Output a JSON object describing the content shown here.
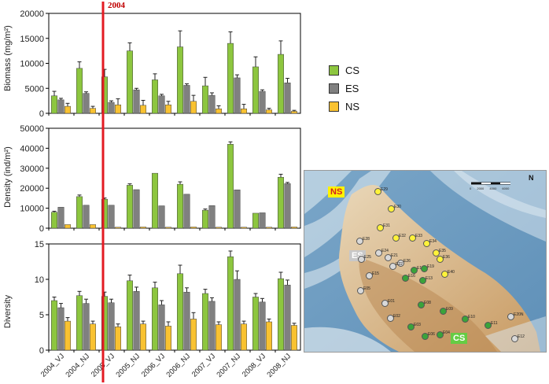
{
  "marker_label": "2004",
  "legend": [
    {
      "label": "CS",
      "color": "#8dc63f"
    },
    {
      "label": "ES",
      "color": "#808080"
    },
    {
      "label": "NS",
      "color": "#f9c231"
    }
  ],
  "colors": {
    "cs": "#8dc63f",
    "es": "#808080",
    "ns": "#f9c231",
    "marker": "#e31b23"
  },
  "map": {
    "zones": {
      "ns": "NS",
      "es": "ES",
      "cs": "CS"
    },
    "north_symbol": "N",
    "scale": [
      "0",
      "2000",
      "4000",
      "6000"
    ],
    "stations": [
      {
        "id": "E29",
        "zone": "ns"
      },
      {
        "id": "E30",
        "zone": "ns"
      },
      {
        "id": "E31",
        "zone": "ns"
      },
      {
        "id": "E32",
        "zone": "ns"
      },
      {
        "id": "E33",
        "zone": "ns"
      },
      {
        "id": "E34",
        "zone": "ns"
      },
      {
        "id": "E28",
        "zone": "es"
      },
      {
        "id": "E24",
        "zone": "es"
      },
      {
        "id": "E21",
        "zone": "es"
      },
      {
        "id": "E25",
        "zone": "es"
      },
      {
        "id": "E35",
        "zone": "ns"
      },
      {
        "id": "E36",
        "zone": "ns"
      },
      {
        "id": "E26",
        "zone": "es"
      },
      {
        "id": "E22",
        "zone": "es"
      },
      {
        "id": "E18",
        "zone": "cs"
      },
      {
        "id": "E19",
        "zone": "cs"
      },
      {
        "id": "E40",
        "zone": "ns"
      },
      {
        "id": "E15",
        "zone": "es"
      },
      {
        "id": "E16",
        "zone": "cs"
      },
      {
        "id": "E13",
        "zone": "cs"
      },
      {
        "id": "E05",
        "zone": "es"
      },
      {
        "id": "E01",
        "zone": "es"
      },
      {
        "id": "E08",
        "zone": "cs"
      },
      {
        "id": "E09",
        "zone": "cs"
      },
      {
        "id": "E10",
        "zone": "cs"
      },
      {
        "id": "E11",
        "zone": "cs"
      },
      {
        "id": "E02",
        "zone": "es"
      },
      {
        "id": "E03",
        "zone": "cs"
      },
      {
        "id": "E04",
        "zone": "cs"
      },
      {
        "id": "E06",
        "zone": "cs"
      },
      {
        "id": "E12",
        "zone": "es"
      },
      {
        "id": "E20N",
        "zone": "es"
      }
    ]
  },
  "chart_data": [
    {
      "type": "bar",
      "ylabel": "Biomass (mg/m²)",
      "ylim": [
        0,
        20000
      ],
      "yticks": [
        "0",
        "5000",
        "10000",
        "15000",
        "20000"
      ],
      "categories": [
        "2004_VJ",
        "2004_NJ",
        "2005_VJ",
        "2005_NJ",
        "2006_VJ",
        "2006_NJ",
        "2007_VJ",
        "2007_NJ",
        "2008_VJ",
        "2008_NJ"
      ],
      "series": [
        {
          "name": "CS",
          "values": [
            3500,
            9000,
            7300,
            12500,
            6700,
            13300,
            5500,
            14000,
            9300,
            11800
          ],
          "errors": [
            900,
            1300,
            1500,
            1600,
            1200,
            3200,
            1700,
            2300,
            2000,
            2700
          ]
        },
        {
          "name": "ES",
          "values": [
            2700,
            4000,
            2200,
            4700,
            3500,
            5600,
            3600,
            7100,
            4400,
            6100
          ],
          "errors": [
            300,
            300,
            300,
            300,
            300,
            300,
            500,
            600,
            300,
            900
          ]
        },
        {
          "name": "NS",
          "values": [
            1400,
            1000,
            1700,
            1600,
            1700,
            2400,
            900,
            900,
            700,
            400
          ],
          "errors": [
            600,
            400,
            1200,
            1000,
            700,
            1200,
            600,
            900,
            300,
            200
          ]
        }
      ]
    },
    {
      "type": "bar",
      "ylabel": "Density (ind/m²)",
      "ylim": [
        0,
        50000
      ],
      "yticks": [
        "0",
        "10000",
        "20000",
        "30000",
        "40000",
        "50000"
      ],
      "categories": [
        "2004_VJ",
        "2004_NJ",
        "2005_VJ",
        "2005_NJ",
        "2006_VJ",
        "2006_NJ",
        "2007_VJ",
        "2007_NJ",
        "2008_VJ",
        "2008_NJ"
      ],
      "series": [
        {
          "name": "CS",
          "values": [
            8000,
            15800,
            14500,
            21500,
            27500,
            22000,
            9000,
            42000,
            7500,
            25500
          ],
          "errors": [
            500,
            800,
            600,
            700,
            0,
            1200,
            600,
            1200,
            0,
            1500
          ]
        },
        {
          "name": "ES",
          "values": [
            10500,
            11500,
            11500,
            19300,
            11200,
            17000,
            11300,
            19200,
            7700,
            22300
          ],
          "errors": [
            0,
            0,
            0,
            0,
            0,
            0,
            0,
            0,
            0,
            600
          ]
        },
        {
          "name": "NS",
          "values": [
            1800,
            1800,
            500,
            600,
            500,
            600,
            500,
            500,
            500,
            600
          ],
          "errors": [
            0,
            0,
            0,
            0,
            0,
            0,
            0,
            0,
            0,
            0
          ]
        }
      ]
    },
    {
      "type": "bar",
      "ylabel": "Diversity",
      "ylim": [
        0,
        15
      ],
      "yticks": [
        "0",
        "5",
        "10",
        "15"
      ],
      "xticklabels": [
        "2004_VJ",
        "2004_NJ",
        "2005_VJ",
        "2005_NJ",
        "2006_VJ",
        "2006_NJ",
        "2007_VJ",
        "2007_NJ",
        "2008_VJ",
        "2008_NJ"
      ],
      "categories": [
        "2004_VJ",
        "2004_NJ",
        "2005_VJ",
        "2005_NJ",
        "2006_VJ",
        "2006_NJ",
        "2007_VJ",
        "2007_NJ",
        "2008_VJ",
        "2008_NJ"
      ],
      "series": [
        {
          "name": "CS",
          "values": [
            7.0,
            7.7,
            7.6,
            9.8,
            8.8,
            10.8,
            8.0,
            13.2,
            7.5,
            10.1
          ],
          "errors": [
            0.5,
            0.6,
            0.6,
            0.8,
            0.8,
            1.2,
            0.6,
            0.8,
            0.5,
            0.9
          ]
        },
        {
          "name": "ES",
          "values": [
            6.0,
            6.6,
            6.7,
            8.3,
            6.4,
            8.2,
            6.9,
            10.0,
            6.8,
            9.2
          ],
          "errors": [
            0.6,
            0.6,
            0.5,
            0.6,
            0.6,
            0.6,
            0.5,
            1.2,
            0.5,
            0.7
          ]
        },
        {
          "name": "NS",
          "values": [
            4.1,
            3.7,
            3.3,
            3.7,
            3.4,
            4.4,
            3.6,
            3.7,
            4.0,
            3.5
          ],
          "errors": [
            0.5,
            0.4,
            0.4,
            0.4,
            0.6,
            0.9,
            0.4,
            0.4,
            0.4,
            0.3
          ]
        }
      ]
    }
  ]
}
